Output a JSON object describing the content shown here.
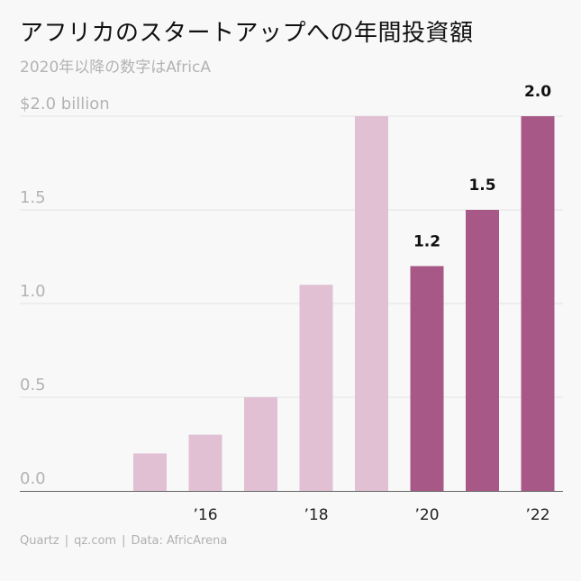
{
  "header": {
    "title": "アフリカのスタートアップへの年間投資額",
    "subtitle": "2020年以降の数字はAfricA"
  },
  "chart_data": {
    "type": "bar",
    "title": "アフリカのスタートアップへの年間投資額",
    "subtitle": "2020年以降の数字はAfricA",
    "categories": [
      "2015",
      "2016",
      "2017",
      "2018",
      "2019",
      "2020",
      "2021",
      "2022"
    ],
    "x_tick_labels": [
      {
        "category": "2016",
        "label": "’16"
      },
      {
        "category": "2018",
        "label": "’18"
      },
      {
        "category": "2020",
        "label": "’20"
      },
      {
        "category": "2022",
        "label": "’22"
      }
    ],
    "values": [
      0.2,
      0.3,
      0.5,
      1.1,
      2.0,
      1.2,
      1.5,
      2.0
    ],
    "data_labels": [
      null,
      null,
      null,
      null,
      null,
      "1.2",
      "1.5",
      "2.0"
    ],
    "highlight_from_index": 5,
    "ylim": [
      0,
      2.0
    ],
    "y_ticks": [
      0.0,
      0.5,
      1.0,
      1.5,
      2.0
    ],
    "y_tick_labels": [
      "0.0",
      "0.5",
      "1.0",
      "1.5",
      "$2.0 billion"
    ],
    "xlabel": "",
    "ylabel": "",
    "grid": true,
    "colors": {
      "light": "#e0c0d2",
      "dark": "#a85886",
      "grid": "#e2e2e2",
      "axis": "#666666",
      "tick_text": "#b3b3b3"
    }
  },
  "footer": {
    "source_parts": [
      "Quartz",
      "qz.com",
      "Data: AfricArena"
    ],
    "separator": "|"
  }
}
